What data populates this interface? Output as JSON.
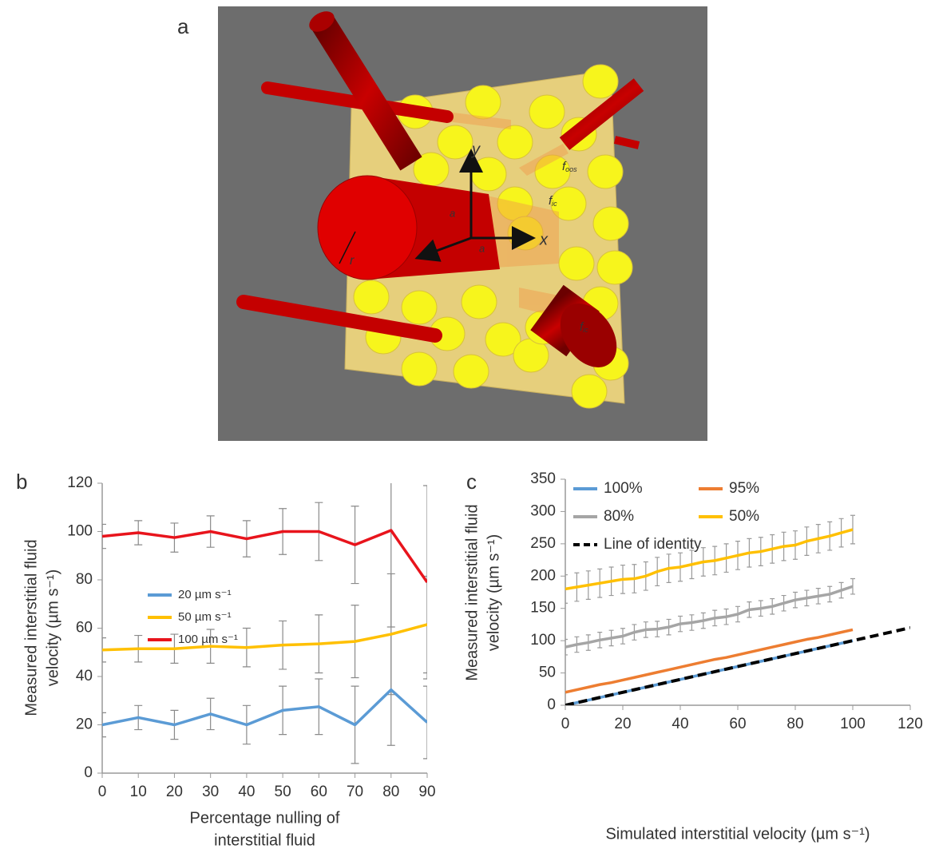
{
  "illustration": {
    "panel_label": "a",
    "axis_labels": [
      "y",
      "x"
    ],
    "symbols": [
      "r",
      "a",
      "a"
    ],
    "forces": [
      {
        "main": "f",
        "sub": "oos"
      },
      {
        "main": "f",
        "sub": "ic"
      },
      {
        "main": "f",
        "sub": "ic"
      }
    ]
  },
  "chart_data": [
    {
      "type": "line",
      "panel_label": "b",
      "xlabel": [
        "Percentage nulling of",
        "interstitial fluid"
      ],
      "ylabel": [
        "Measured interstitial fluid",
        "velocity (µm s⁻¹)"
      ],
      "x": [
        0,
        10,
        20,
        30,
        40,
        50,
        60,
        70,
        80,
        90
      ],
      "series": [
        {
          "name": "20 µm s⁻¹",
          "color": "#5b9bd5",
          "values": [
            20,
            23,
            20,
            24.5,
            20,
            26,
            27.5,
            20,
            34.5,
            21
          ],
          "errors": [
            5,
            5,
            6,
            6.5,
            8,
            10,
            11.5,
            16,
            23,
            15
          ]
        },
        {
          "name": "50 µm s⁻¹",
          "color": "#ffc000",
          "values": [
            51,
            51.5,
            51.5,
            52.5,
            52,
            53,
            53.5,
            54.5,
            57.5,
            61.5
          ],
          "errors": [
            5,
            5.5,
            6,
            7,
            8,
            10,
            12,
            15,
            25,
            20
          ]
        },
        {
          "name": "100 µm s⁻¹",
          "color": "#e8141c",
          "values": [
            98,
            99.5,
            97.5,
            100,
            97,
            100,
            100,
            94.5,
            100.5,
            79
          ],
          "errors": [
            5,
            5,
            6,
            6.5,
            7.5,
            9.5,
            12,
            16,
            40,
            40
          ]
        }
      ],
      "xlim": [
        0,
        90
      ],
      "xticks": [
        0,
        10,
        20,
        30,
        40,
        50,
        60,
        70,
        80,
        90
      ],
      "ylim": [
        0,
        120
      ],
      "yticks": [
        0,
        20,
        40,
        60,
        80,
        100,
        120
      ],
      "legend": "center-left",
      "legend_columns": 1
    },
    {
      "type": "line",
      "panel_label": "c",
      "xlabel": [
        "Simulated interstitial velocity (µm s⁻¹)"
      ],
      "ylabel": [
        "Measured interstitial fluid",
        "velocity (µm s⁻¹)"
      ],
      "series": [
        {
          "name": "100%",
          "color": "#5b9bd5",
          "x": [
            0,
            4,
            8,
            12,
            16,
            20,
            24,
            28,
            32,
            36,
            40,
            44,
            48,
            52,
            56,
            60,
            64,
            68,
            72,
            76,
            80,
            84,
            88,
            92,
            96,
            100
          ],
          "values": [
            0,
            4,
            8,
            12,
            16,
            20,
            24,
            28,
            32,
            36,
            40,
            44,
            48,
            52,
            56,
            60,
            64,
            68,
            72,
            76,
            80,
            84,
            88,
            92,
            96,
            100
          ]
        },
        {
          "name": "95%",
          "color": "#ed7d31",
          "x": [
            0,
            4,
            8,
            12,
            16,
            20,
            24,
            28,
            32,
            36,
            40,
            44,
            48,
            52,
            56,
            60,
            64,
            68,
            72,
            76,
            80,
            84,
            88,
            92,
            96,
            100
          ],
          "values": [
            20,
            24,
            28,
            32,
            35,
            39,
            43,
            47,
            51,
            55,
            59,
            63,
            67,
            71,
            74,
            78,
            82,
            86,
            90,
            94,
            98,
            102,
            105,
            109,
            113,
            117
          ]
        },
        {
          "name": "80%",
          "color": "#a5a5a5",
          "x": [
            0,
            4,
            8,
            12,
            16,
            20,
            24,
            28,
            32,
            36,
            40,
            44,
            48,
            52,
            56,
            60,
            64,
            68,
            72,
            76,
            80,
            84,
            88,
            92,
            96,
            100
          ],
          "values": [
            90,
            94,
            97,
            101,
            104,
            107,
            113,
            117,
            118,
            121,
            126,
            128,
            131,
            135,
            137,
            141,
            148,
            150,
            153,
            158,
            163,
            166,
            169,
            172,
            178,
            184
          ],
          "errors": [
            12,
            12,
            12,
            12,
            12,
            12,
            12,
            12,
            12,
            12,
            12,
            12,
            12,
            12,
            12,
            12,
            12,
            12,
            12,
            12,
            12,
            12,
            12,
            12,
            12,
            12
          ]
        },
        {
          "name": "50%",
          "color": "#ffc000",
          "x": [
            0,
            4,
            8,
            12,
            16,
            20,
            24,
            28,
            32,
            36,
            40,
            44,
            48,
            52,
            56,
            60,
            64,
            68,
            72,
            76,
            80,
            84,
            88,
            92,
            96,
            100
          ],
          "values": [
            180,
            183,
            186,
            189,
            192,
            195,
            196,
            200,
            207,
            212,
            214,
            218,
            222,
            224,
            228,
            232,
            236,
            238,
            242,
            246,
            248,
            254,
            258,
            262,
            267,
            272
          ],
          "errors": [
            22,
            22,
            22,
            22,
            22,
            22,
            22,
            22,
            22,
            22,
            22,
            22,
            22,
            22,
            22,
            22,
            22,
            22,
            22,
            22,
            22,
            22,
            22,
            22,
            22,
            22
          ]
        },
        {
          "name": "Line of identity",
          "color": "#000000",
          "dash": true,
          "x": [
            0,
            120
          ],
          "values": [
            0,
            120
          ]
        }
      ],
      "xlim": [
        0,
        120
      ],
      "xticks": [
        0,
        20,
        40,
        60,
        80,
        100,
        120
      ],
      "ylim": [
        0,
        350
      ],
      "yticks": [
        0,
        50,
        100,
        150,
        200,
        250,
        300,
        350
      ],
      "legend": "upper-left",
      "legend_columns": 2
    }
  ]
}
